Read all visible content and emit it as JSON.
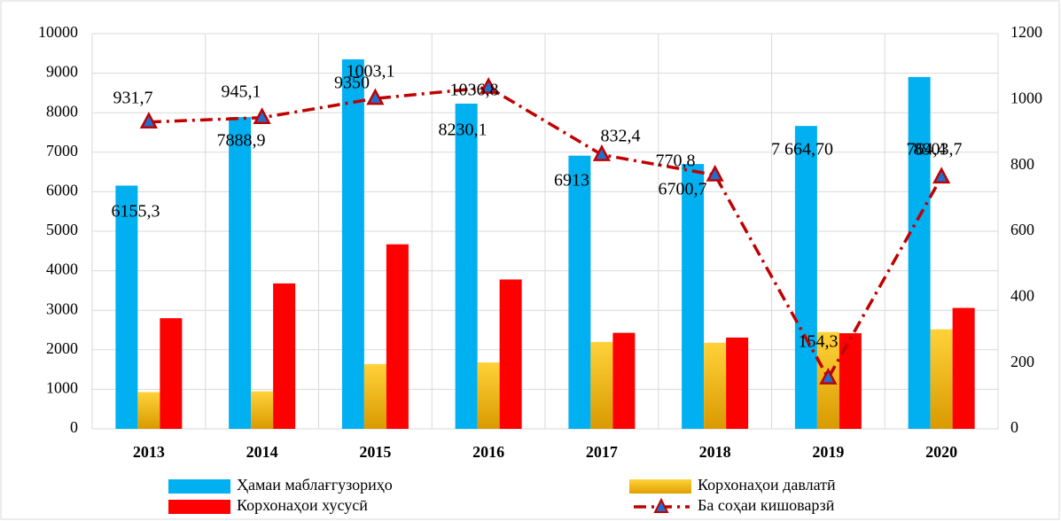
{
  "chart_data": {
    "type": "bar",
    "categories": [
      "2013",
      "2014",
      "2015",
      "2016",
      "2017",
      "2018",
      "2019",
      "2020"
    ],
    "series": [
      {
        "name": "Ҳамаи маблағгузориҳо",
        "color": "#00b0f0",
        "values": [
          6155.3,
          7888.9,
          9350,
          8230.1,
          6913,
          6700.7,
          7664.7,
          8903.7
        ],
        "value_labels": [
          "6155,3",
          "7888,9",
          "9350",
          "8230,1",
          "6913",
          "6700,7",
          "7 664,70",
          "8903,7"
        ]
      },
      {
        "name": "Корхонаҳои давлатӣ",
        "color": "#ffc000",
        "values": [
          930,
          950,
          1640,
          1680,
          2200,
          2180,
          2450,
          2520
        ]
      },
      {
        "name": "Корхонаҳои хусусӣ",
        "color": "#ff0000",
        "values": [
          2800,
          3680,
          4670,
          3780,
          2430,
          2310,
          2420,
          3060
        ]
      },
      {
        "name": "Ба соҳаи кишоварзӣ",
        "color": "#c00000",
        "type": "line",
        "axis": "y2",
        "values": [
          931.7,
          945.1,
          1003.1,
          1036.8,
          832.4,
          770.8,
          154.3,
          764.4
        ],
        "value_labels": [
          "931,7",
          "945,1",
          "1003,1",
          "1036,8",
          "832,4",
          "770,8",
          "154,3",
          "764,4"
        ]
      }
    ],
    "ylim": [
      0,
      10000
    ],
    "yticks": [
      0,
      1000,
      2000,
      3000,
      4000,
      5000,
      6000,
      7000,
      8000,
      9000,
      10000
    ],
    "y2lim": [
      0,
      1200
    ],
    "y2ticks": [
      0,
      200,
      400,
      600,
      800,
      1000,
      1200
    ],
    "grid": true
  }
}
